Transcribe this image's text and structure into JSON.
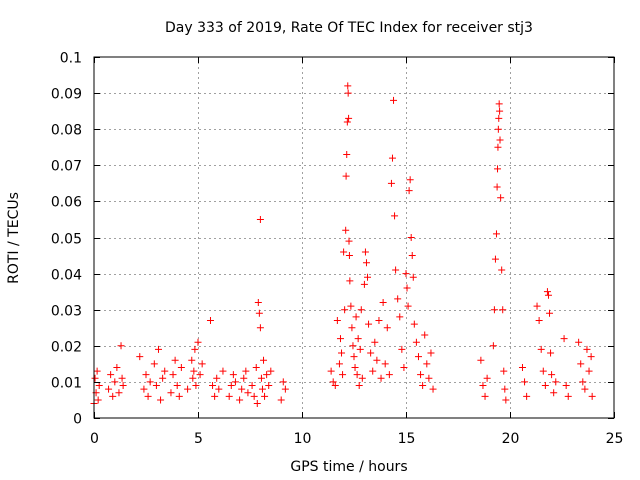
{
  "chart_data": {
    "type": "scatter",
    "title": "Day 333 of 2019, Rate Of TEC Index for receiver stj3",
    "xlabel": "GPS time / hours",
    "ylabel": "ROTI / TECUs",
    "xlim": [
      0,
      25
    ],
    "ylim": [
      0,
      0.1
    ],
    "grid": true,
    "marker": "plus",
    "color": "#ff0000",
    "x_ticks": [
      {
        "value": 0,
        "label": "0"
      },
      {
        "value": 5,
        "label": "5"
      },
      {
        "value": 10,
        "label": "10"
      },
      {
        "value": 15,
        "label": "15"
      },
      {
        "value": 20,
        "label": "20"
      },
      {
        "value": 25,
        "label": "25"
      }
    ],
    "y_ticks": [
      {
        "value": 0,
        "label": "0"
      },
      {
        "value": 0.01,
        "label": "0.01"
      },
      {
        "value": 0.02,
        "label": "0.02"
      },
      {
        "value": 0.03,
        "label": "0.03"
      },
      {
        "value": 0.04,
        "label": "0.04"
      },
      {
        "value": 0.05,
        "label": "0.05"
      },
      {
        "value": 0.06,
        "label": "0.06"
      },
      {
        "value": 0.07,
        "label": "0.07"
      },
      {
        "value": 0.08,
        "label": "0.08"
      },
      {
        "value": 0.09,
        "label": "0.09"
      },
      {
        "value": 0.1,
        "label": "0.1"
      }
    ],
    "series": [
      {
        "name": "ROTI",
        "points": [
          [
            0.0,
            0.004
          ],
          [
            0.05,
            0.011
          ],
          [
            0.1,
            0.007
          ],
          [
            0.15,
            0.013
          ],
          [
            0.2,
            0.005
          ],
          [
            0.25,
            0.009
          ],
          [
            0.7,
            0.008
          ],
          [
            0.8,
            0.012
          ],
          [
            0.9,
            0.006
          ],
          [
            1.0,
            0.01
          ],
          [
            1.1,
            0.014
          ],
          [
            1.2,
            0.007
          ],
          [
            1.3,
            0.02
          ],
          [
            1.35,
            0.011
          ],
          [
            1.4,
            0.009
          ],
          [
            2.2,
            0.017
          ],
          [
            2.4,
            0.008
          ],
          [
            2.5,
            0.012
          ],
          [
            2.6,
            0.006
          ],
          [
            2.7,
            0.01
          ],
          [
            2.9,
            0.015
          ],
          [
            3.0,
            0.009
          ],
          [
            3.1,
            0.019
          ],
          [
            3.2,
            0.005
          ],
          [
            3.3,
            0.011
          ],
          [
            3.4,
            0.013
          ],
          [
            3.7,
            0.007
          ],
          [
            3.8,
            0.012
          ],
          [
            3.9,
            0.016
          ],
          [
            4.0,
            0.009
          ],
          [
            4.1,
            0.006
          ],
          [
            4.2,
            0.014
          ],
          [
            4.5,
            0.008
          ],
          [
            4.7,
            0.016
          ],
          [
            4.75,
            0.011
          ],
          [
            4.8,
            0.013
          ],
          [
            4.85,
            0.019
          ],
          [
            4.9,
            0.009
          ],
          [
            5.0,
            0.021
          ],
          [
            5.1,
            0.012
          ],
          [
            5.2,
            0.015
          ],
          [
            5.6,
            0.027
          ],
          [
            5.7,
            0.009
          ],
          [
            5.8,
            0.006
          ],
          [
            5.9,
            0.011
          ],
          [
            6.0,
            0.008
          ],
          [
            6.2,
            0.013
          ],
          [
            6.5,
            0.006
          ],
          [
            6.6,
            0.009
          ],
          [
            6.7,
            0.012
          ],
          [
            6.8,
            0.01
          ],
          [
            7.0,
            0.005
          ],
          [
            7.1,
            0.008
          ],
          [
            7.2,
            0.011
          ],
          [
            7.3,
            0.013
          ],
          [
            7.4,
            0.007
          ],
          [
            7.6,
            0.009
          ],
          [
            7.7,
            0.006
          ],
          [
            7.8,
            0.014
          ],
          [
            7.85,
            0.004
          ],
          [
            7.9,
            0.032
          ],
          [
            7.95,
            0.029
          ],
          [
            8.0,
            0.055
          ],
          [
            8.0,
            0.025
          ],
          [
            8.05,
            0.011
          ],
          [
            8.1,
            0.008
          ],
          [
            8.15,
            0.016
          ],
          [
            8.2,
            0.006
          ],
          [
            8.3,
            0.012
          ],
          [
            8.4,
            0.009
          ],
          [
            8.5,
            0.013
          ],
          [
            9.0,
            0.005
          ],
          [
            9.1,
            0.01
          ],
          [
            9.2,
            0.008
          ],
          [
            11.4,
            0.013
          ],
          [
            11.5,
            0.01
          ],
          [
            11.6,
            0.009
          ],
          [
            11.7,
            0.027
          ],
          [
            11.8,
            0.015
          ],
          [
            11.85,
            0.022
          ],
          [
            11.9,
            0.018
          ],
          [
            11.95,
            0.012
          ],
          [
            12.0,
            0.046
          ],
          [
            12.05,
            0.03
          ],
          [
            12.1,
            0.052
          ],
          [
            12.12,
            0.067
          ],
          [
            12.15,
            0.073
          ],
          [
            12.18,
            0.082
          ],
          [
            12.2,
            0.092
          ],
          [
            12.22,
            0.09
          ],
          [
            12.24,
            0.083
          ],
          [
            12.26,
            0.049
          ],
          [
            12.28,
            0.045
          ],
          [
            12.3,
            0.038
          ],
          [
            12.35,
            0.031
          ],
          [
            12.4,
            0.025
          ],
          [
            12.45,
            0.02
          ],
          [
            12.5,
            0.017
          ],
          [
            12.55,
            0.014
          ],
          [
            12.6,
            0.028
          ],
          [
            12.65,
            0.012
          ],
          [
            12.7,
            0.022
          ],
          [
            12.75,
            0.009
          ],
          [
            12.8,
            0.019
          ],
          [
            12.85,
            0.03
          ],
          [
            12.9,
            0.011
          ],
          [
            13.0,
            0.037
          ],
          [
            13.05,
            0.046
          ],
          [
            13.1,
            0.043
          ],
          [
            13.15,
            0.039
          ],
          [
            13.2,
            0.026
          ],
          [
            13.3,
            0.018
          ],
          [
            13.4,
            0.013
          ],
          [
            13.5,
            0.021
          ],
          [
            13.6,
            0.016
          ],
          [
            13.7,
            0.027
          ],
          [
            13.8,
            0.011
          ],
          [
            13.9,
            0.032
          ],
          [
            14.0,
            0.015
          ],
          [
            14.1,
            0.025
          ],
          [
            14.2,
            0.012
          ],
          [
            14.3,
            0.065
          ],
          [
            14.35,
            0.072
          ],
          [
            14.4,
            0.088
          ],
          [
            14.45,
            0.056
          ],
          [
            14.5,
            0.041
          ],
          [
            14.6,
            0.033
          ],
          [
            14.7,
            0.028
          ],
          [
            14.8,
            0.019
          ],
          [
            14.9,
            0.014
          ],
          [
            15.0,
            0.04
          ],
          [
            15.05,
            0.036
          ],
          [
            15.1,
            0.031
          ],
          [
            15.15,
            0.063
          ],
          [
            15.2,
            0.066
          ],
          [
            15.25,
            0.05
          ],
          [
            15.3,
            0.045
          ],
          [
            15.35,
            0.039
          ],
          [
            15.4,
            0.026
          ],
          [
            15.5,
            0.021
          ],
          [
            15.6,
            0.017
          ],
          [
            15.7,
            0.012
          ],
          [
            15.8,
            0.009
          ],
          [
            15.9,
            0.023
          ],
          [
            16.0,
            0.015
          ],
          [
            16.1,
            0.011
          ],
          [
            16.2,
            0.018
          ],
          [
            16.3,
            0.008
          ],
          [
            18.6,
            0.016
          ],
          [
            18.7,
            0.009
          ],
          [
            18.8,
            0.006
          ],
          [
            18.9,
            0.011
          ],
          [
            19.2,
            0.02
          ],
          [
            19.25,
            0.03
          ],
          [
            19.3,
            0.044
          ],
          [
            19.35,
            0.051
          ],
          [
            19.38,
            0.064
          ],
          [
            19.4,
            0.069
          ],
          [
            19.42,
            0.075
          ],
          [
            19.44,
            0.08
          ],
          [
            19.46,
            0.083
          ],
          [
            19.48,
            0.087
          ],
          [
            19.5,
            0.085
          ],
          [
            19.52,
            0.077
          ],
          [
            19.55,
            0.061
          ],
          [
            19.6,
            0.041
          ],
          [
            19.65,
            0.03
          ],
          [
            19.7,
            0.013
          ],
          [
            19.75,
            0.008
          ],
          [
            19.8,
            0.005
          ],
          [
            20.6,
            0.014
          ],
          [
            20.7,
            0.01
          ],
          [
            20.8,
            0.006
          ],
          [
            21.3,
            0.031
          ],
          [
            21.4,
            0.027
          ],
          [
            21.5,
            0.019
          ],
          [
            21.6,
            0.013
          ],
          [
            21.7,
            0.009
          ],
          [
            21.8,
            0.035
          ],
          [
            21.85,
            0.034
          ],
          [
            21.9,
            0.029
          ],
          [
            21.95,
            0.018
          ],
          [
            22.0,
            0.012
          ],
          [
            22.1,
            0.007
          ],
          [
            22.2,
            0.01
          ],
          [
            22.6,
            0.022
          ],
          [
            22.7,
            0.009
          ],
          [
            22.8,
            0.006
          ],
          [
            23.3,
            0.021
          ],
          [
            23.4,
            0.015
          ],
          [
            23.5,
            0.01
          ],
          [
            23.6,
            0.008
          ],
          [
            23.7,
            0.019
          ],
          [
            23.8,
            0.013
          ],
          [
            23.9,
            0.017
          ],
          [
            23.95,
            0.006
          ]
        ]
      }
    ]
  }
}
